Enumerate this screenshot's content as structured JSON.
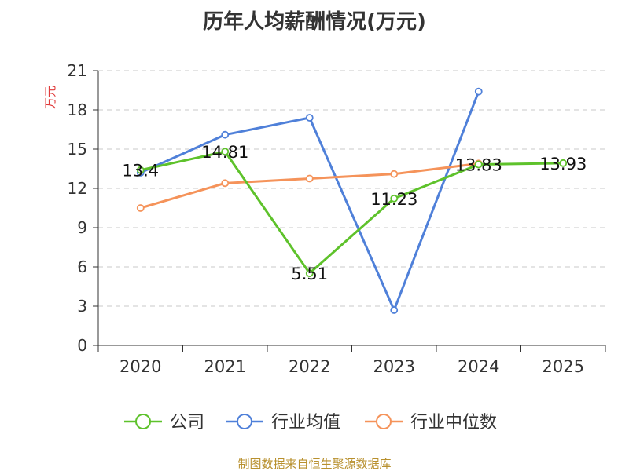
{
  "chart_data": {
    "type": "line",
    "title": "历年人均薪酬情况(万元)",
    "ylabel": "万元",
    "xlabel": "",
    "ylim": [
      0,
      21
    ],
    "yticks": [
      0,
      3,
      6,
      9,
      12,
      15,
      18,
      21
    ],
    "categories": [
      "2020",
      "2021",
      "2022",
      "2023",
      "2024",
      "2025"
    ],
    "grid": true,
    "legend_position": "bottom",
    "series": [
      {
        "name": "公司",
        "color": "#5ec22b",
        "values": [
          13.4,
          14.81,
          5.51,
          11.23,
          13.83,
          13.93
        ],
        "labels": [
          "13.4",
          "14.81",
          "5.51",
          "11.23",
          "13.83",
          "13.93"
        ]
      },
      {
        "name": "行业均值",
        "color": "#4f80d9",
        "values": [
          13.2,
          16.1,
          17.4,
          2.7,
          19.4,
          null
        ]
      },
      {
        "name": "行业中位数",
        "color": "#f5935a",
        "values": [
          10.5,
          12.4,
          12.75,
          13.1,
          13.9,
          null
        ]
      }
    ]
  },
  "footer": {
    "source": "制图数据来自恒生聚源数据库"
  }
}
